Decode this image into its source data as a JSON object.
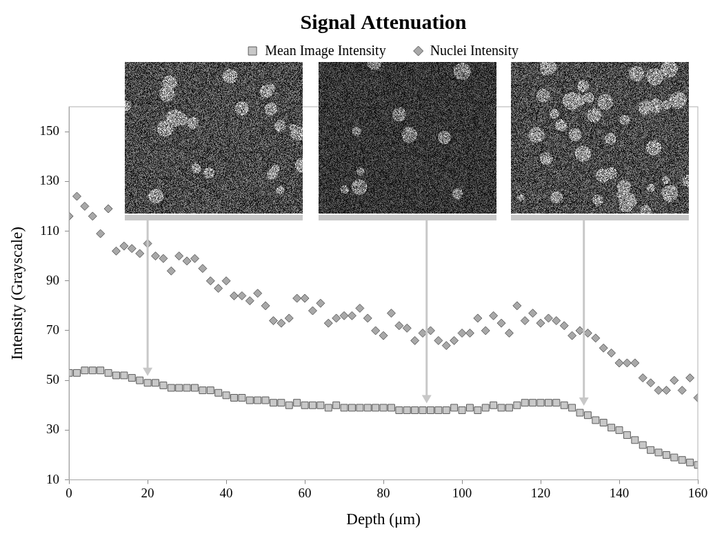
{
  "chart_data": {
    "type": "scatter",
    "title": "Signal Attenuation",
    "x_label": "Depth (μm)",
    "y_label": "Intensity (Grayscale)",
    "x": [
      0,
      2,
      4,
      6,
      8,
      10,
      12,
      14,
      16,
      18,
      20,
      22,
      24,
      26,
      28,
      30,
      32,
      34,
      36,
      38,
      40,
      42,
      44,
      46,
      48,
      50,
      52,
      54,
      56,
      58,
      60,
      62,
      64,
      66,
      68,
      70,
      72,
      74,
      76,
      78,
      80,
      82,
      84,
      86,
      88,
      90,
      92,
      94,
      96,
      98,
      100,
      102,
      104,
      106,
      108,
      110,
      112,
      114,
      116,
      118,
      120,
      122,
      124,
      126,
      128,
      130,
      132,
      134,
      136,
      138,
      140,
      142,
      144,
      146,
      148,
      150,
      152,
      154,
      156,
      158,
      160
    ],
    "series": [
      {
        "name": "Mean Image Intensity",
        "color": "#c8c8c8",
        "marker": "square",
        "values": [
          53,
          53,
          54,
          54,
          54,
          53,
          52,
          52,
          51,
          50,
          49,
          49,
          48,
          47,
          47,
          47,
          47,
          46,
          46,
          45,
          44,
          43,
          43,
          42,
          42,
          42,
          41,
          41,
          40,
          41,
          40,
          40,
          40,
          39,
          40,
          39,
          39,
          39,
          39,
          39,
          39,
          39,
          38,
          38,
          38,
          38,
          38,
          38,
          38,
          39,
          38,
          39,
          38,
          39,
          40,
          39,
          39,
          40,
          41,
          41,
          41,
          41,
          41,
          40,
          39,
          37,
          36,
          34,
          33,
          31,
          30,
          28,
          26,
          24,
          22,
          21,
          20,
          19,
          18,
          17,
          16
        ]
      },
      {
        "name": "Nuclei Intensity",
        "color": "#a8a8a8",
        "marker": "diamond",
        "values": [
          116,
          124,
          120,
          116,
          109,
          119,
          102,
          104,
          103,
          101,
          105,
          100,
          99,
          94,
          100,
          98,
          99,
          95,
          90,
          87,
          90,
          84,
          84,
          82,
          85,
          80,
          74,
          73,
          75,
          83,
          83,
          78,
          81,
          73,
          75,
          76,
          76,
          79,
          75,
          70,
          68,
          77,
          72,
          71,
          66,
          69,
          70,
          66,
          64,
          66,
          69,
          69,
          75,
          70,
          76,
          73,
          69,
          80,
          74,
          77,
          73,
          75,
          74,
          72,
          68,
          70,
          69,
          67,
          63,
          61,
          57,
          57,
          57,
          51,
          49,
          46,
          46,
          50,
          46,
          51,
          43
        ]
      }
    ],
    "xlim": [
      0,
      160
    ],
    "xticks": [
      0,
      20,
      40,
      60,
      80,
      100,
      120,
      140,
      160
    ],
    "ylim": [
      10,
      160
    ],
    "yticks": [
      10,
      30,
      50,
      70,
      90,
      110,
      130,
      150
    ],
    "grid": false,
    "legend": "top",
    "image_depths": [
      20,
      91,
      131
    ]
  }
}
